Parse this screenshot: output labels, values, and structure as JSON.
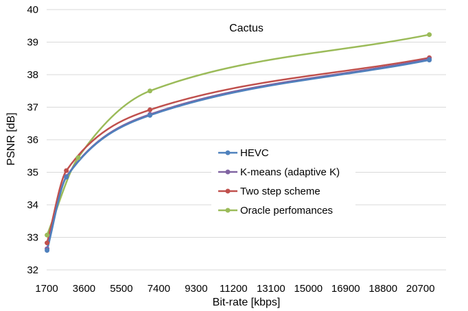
{
  "chart_data": {
    "type": "line",
    "title": "Cactus",
    "xlabel": "Bit-rate [kbps]",
    "ylabel": "PSNR [dB]",
    "xlim": [
      1700,
      22000
    ],
    "ylim": [
      32,
      40
    ],
    "x_ticks": [
      1700,
      3600,
      5500,
      7400,
      9300,
      11200,
      13100,
      15000,
      16900,
      18800,
      20700
    ],
    "y_ticks": [
      32,
      33,
      34,
      35,
      36,
      37,
      38,
      39,
      40
    ],
    "grid": "horizontal",
    "legend_position": "center-right",
    "smooth": true,
    "series": [
      {
        "name": "HEVC",
        "color": "#4f81bd",
        "x": [
          1720,
          2700,
          6950,
          21150
        ],
        "y": [
          32.6,
          34.85,
          36.75,
          38.45
        ]
      },
      {
        "name": "K-means (adaptive K)",
        "color": "#8064a2",
        "x": [
          1720,
          2700,
          6950,
          21150
        ],
        "y": [
          32.65,
          34.87,
          36.78,
          38.48
        ]
      },
      {
        "name": "Two step scheme",
        "color": "#c0504d",
        "x": [
          1720,
          2700,
          6950,
          21150
        ],
        "y": [
          32.83,
          35.05,
          36.92,
          38.52
        ]
      },
      {
        "name": "Oracle perfomances",
        "color": "#9bbb59",
        "x": [
          1720,
          3300,
          6950,
          21150
        ],
        "y": [
          33.07,
          35.45,
          37.5,
          39.23
        ]
      }
    ]
  }
}
